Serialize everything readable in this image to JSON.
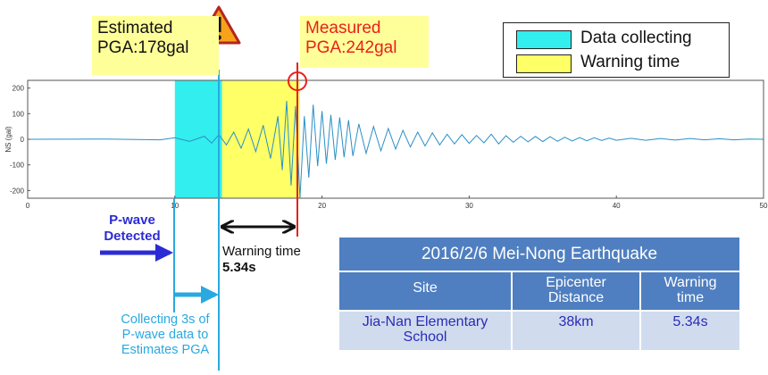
{
  "chart_data": {
    "type": "line",
    "title": "",
    "xlabel": "",
    "ylabel": "NS (gal)",
    "xlim": [
      0,
      50
    ],
    "ylim": [
      -230,
      230
    ],
    "xticks": [
      0,
      10,
      20,
      30,
      40,
      50
    ],
    "yticks": [
      -200,
      -100,
      0,
      100,
      200
    ],
    "grid": false,
    "legend_position": "top-right",
    "series": [
      {
        "color": "#2a8fc7",
        "x": [
          0,
          5,
          9,
          10,
          11,
          12,
          12.5,
          13,
          13.5,
          14,
          14.5,
          15,
          15.5,
          16,
          16.5,
          17,
          17.3,
          17.6,
          17.9,
          18.2,
          18.5,
          18.8,
          19.1,
          19.4,
          19.7,
          20,
          20.3,
          20.6,
          20.9,
          21.2,
          21.5,
          21.8,
          22.1,
          22.5,
          23,
          23.5,
          24,
          24.5,
          25,
          25.5,
          26,
          26.5,
          27,
          27.5,
          28,
          28.5,
          29,
          29.5,
          30,
          30.5,
          31,
          31.5,
          32,
          32.5,
          33,
          33.5,
          34,
          34.5,
          35,
          35.5,
          36,
          36.5,
          37,
          37.5,
          38,
          38.5,
          39,
          39.5,
          40,
          41,
          42,
          43,
          44,
          45,
          46,
          47,
          48,
          49,
          50
        ],
        "y": [
          0,
          1,
          -2,
          6,
          -8,
          12,
          -15,
          18,
          -22,
          28,
          -35,
          40,
          -48,
          55,
          -75,
          90,
          -120,
          150,
          -180,
          130,
          -230,
          90,
          -150,
          135,
          -105,
          110,
          -95,
          95,
          -80,
          85,
          -70,
          75,
          -65,
          60,
          -55,
          50,
          -45,
          42,
          -38,
          35,
          -30,
          28,
          -26,
          25,
          -22,
          20,
          -18,
          18,
          -16,
          15,
          -14,
          20,
          -18,
          14,
          -12,
          12,
          -10,
          11,
          -9,
          10,
          -8,
          8,
          -7,
          7,
          -6,
          6,
          -5,
          5,
          -4,
          4,
          -4,
          3,
          -3,
          3,
          -2,
          2,
          -2,
          1,
          0
        ]
      }
    ],
    "regions": [
      {
        "label": "Data collecting",
        "x0": 10,
        "x1": 13.2,
        "color": "#33eeee"
      },
      {
        "label": "Warning time",
        "x0": 13.2,
        "x1": 18.5,
        "color": "#ffff66"
      }
    ],
    "annotations": {
      "estimated": {
        "line1": "Estimated",
        "line2": "PGA:178gal"
      },
      "measured": {
        "line1": "Measured",
        "line2": "PGA:242gal"
      },
      "pwave": {
        "line1": "P-wave",
        "line2": "Detected"
      },
      "warning": {
        "line1": "Warning time",
        "line2": "5.34s"
      },
      "collecting": {
        "line1": "Collecting 3s of",
        "line2": "P-wave data to",
        "line3": "Estimates PGA"
      }
    }
  },
  "table": {
    "title": "2016/2/6 Mei-Nong Earthquake",
    "headers": [
      "Site",
      "Epicenter\nDistance",
      "Warning\ntime"
    ],
    "row": [
      "Jia-Nan Elementary\nSchool",
      "38km",
      "5.34s"
    ]
  },
  "colors": {
    "arrow_blue": "#2b2bd6",
    "collect_blue": "#29a9e0",
    "measured_red": "#e8201b",
    "table_header": "#4f7fc0",
    "table_body": "#d0dcee"
  }
}
